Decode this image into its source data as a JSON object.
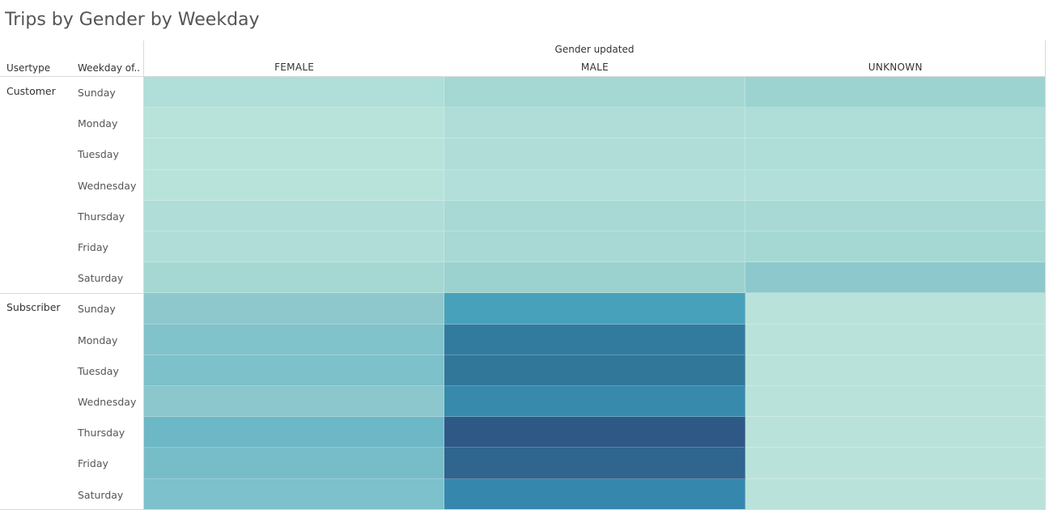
{
  "title": "Trips by Gender by Weekday",
  "chart_data": {
    "type": "heatmap",
    "title": "Trips by Gender by Weekday",
    "column_group_label": "Gender updated",
    "columns": [
      "FEMALE",
      "MALE",
      "UNKNOWN"
    ],
    "row_headers": [
      "Usertype",
      "Weekday of.."
    ],
    "groups": [
      {
        "name": "Customer",
        "days": [
          "Sunday",
          "Monday",
          "Tuesday",
          "Wednesday",
          "Thursday",
          "Friday",
          "Saturday"
        ],
        "colors": [
          [
            "#b0ded8",
            "#a5d8d3",
            "#9cd3d0"
          ],
          [
            "#b8e3da",
            "#b0ddd8",
            "#afddd8"
          ],
          [
            "#b8e3da",
            "#b0ddd8",
            "#afddd8"
          ],
          [
            "#b8e3da",
            "#b2dfd9",
            "#b2dfd9"
          ],
          [
            "#b1ddd8",
            "#a8d9d5",
            "#a8d9d5"
          ],
          [
            "#b1ddd8",
            "#a8d9d5",
            "#a5d8d3"
          ],
          [
            "#a5d8d3",
            "#9bd2cf",
            "#8dc9cc"
          ]
        ]
      },
      {
        "name": "Subscriber",
        "days": [
          "Sunday",
          "Monday",
          "Tuesday",
          "Wednesday",
          "Thursday",
          "Friday",
          "Saturday"
        ],
        "colors": [
          [
            "#8ec8cd",
            "#48a1ba",
            "#b9e3da"
          ],
          [
            "#81c3cb",
            "#327b9f",
            "#b9e3da"
          ],
          [
            "#7dc1cb",
            "#317799",
            "#b9e3da"
          ],
          [
            "#8bc7cd",
            "#378aab",
            "#b9e3da"
          ],
          [
            "#6cb8c6",
            "#2e5987",
            "#b9e3da"
          ],
          [
            "#77bdc8",
            "#2f658e",
            "#b9e3da"
          ],
          [
            "#7cc1cb",
            "#3687ae",
            "#b9e3da"
          ]
        ]
      }
    ]
  }
}
